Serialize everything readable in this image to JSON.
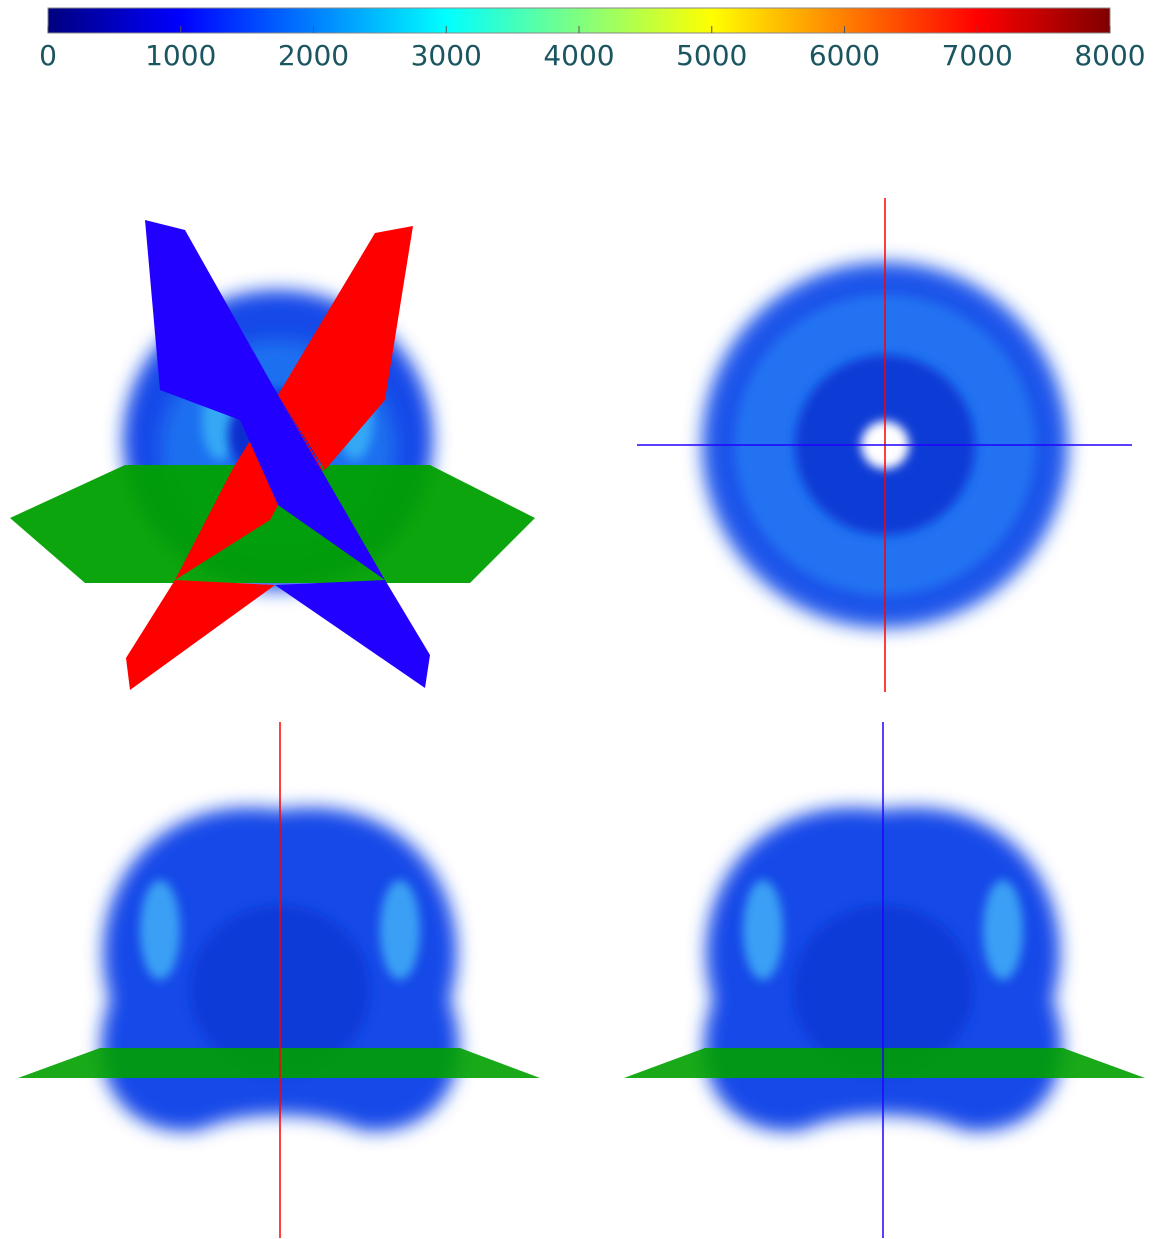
{
  "colorbar": {
    "type": "colorbar",
    "range": [
      0,
      8000
    ],
    "ticks": [
      0,
      1000,
      2000,
      3000,
      4000,
      5000,
      6000,
      7000,
      8000
    ],
    "colors": [
      "#00007f",
      "#0000ff",
      "#007fff",
      "#00ffff",
      "#7fff7f",
      "#ffff00",
      "#ff7f00",
      "#ff0000",
      "#7f0000"
    ]
  }
}
